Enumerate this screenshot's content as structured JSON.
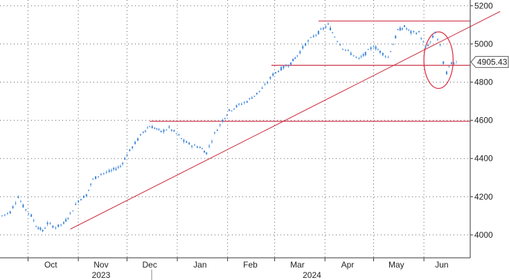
{
  "chart_data": {
    "type": "line",
    "y_axis": {
      "position": "right",
      "ylim": [
        3880,
        5230
      ],
      "ticks": [
        4000,
        4200,
        4400,
        4600,
        4800,
        5000,
        5200
      ],
      "tick_labels": [
        "4000",
        "4200",
        "4400",
        "4600",
        "4800",
        "5000",
        "5200"
      ]
    },
    "x_axis": {
      "xlim": [
        "2023-09-15",
        "2024-06-21"
      ],
      "month_ticks": [
        "2023-10-01",
        "2023-11-01",
        "2023-12-01",
        "2024-01-01",
        "2024-02-01",
        "2024-03-01",
        "2024-04-01",
        "2024-05-01",
        "2024-06-01"
      ],
      "month_labels": [
        "Oct",
        "Nov",
        "Dec",
        "Jan",
        "Feb",
        "Mar",
        "Apr",
        "May",
        "Jun"
      ],
      "month_label_dates": [
        "2023-10-15",
        "2023-11-15",
        "2023-12-15",
        "2024-01-15",
        "2024-02-15",
        "2024-03-15",
        "2024-04-15",
        "2024-05-15",
        "2024-06-12"
      ],
      "year_labels": [
        {
          "label": "2023",
          "date": "2023-11-15"
        },
        {
          "label": "2024",
          "date": "2024-03-24"
        }
      ]
    },
    "grid": true,
    "series_color": "#4a90d9",
    "series": [
      {
        "points": [
          [
            "2023-09-15",
            4100
          ],
          [
            "2023-09-20",
            4120
          ],
          [
            "2023-09-25",
            4200
          ],
          [
            "2023-09-28",
            4150
          ],
          [
            "2023-10-03",
            4100
          ],
          [
            "2023-10-06",
            4050
          ],
          [
            "2023-10-10",
            4020
          ],
          [
            "2023-10-13",
            4060
          ],
          [
            "2023-10-18",
            4040
          ],
          [
            "2023-10-23",
            4060
          ],
          [
            "2023-10-27",
            4110
          ],
          [
            "2023-11-01",
            4180
          ],
          [
            "2023-11-06",
            4210
          ],
          [
            "2023-11-10",
            4290
          ],
          [
            "2023-11-15",
            4320
          ],
          [
            "2023-11-20",
            4330
          ],
          [
            "2023-11-27",
            4360
          ],
          [
            "2023-12-01",
            4420
          ],
          [
            "2023-12-06",
            4480
          ],
          [
            "2023-12-11",
            4540
          ],
          [
            "2023-12-15",
            4570
          ],
          [
            "2023-12-18",
            4560
          ],
          [
            "2023-12-22",
            4540
          ],
          [
            "2023-12-27",
            4560
          ],
          [
            "2024-01-02",
            4520
          ],
          [
            "2024-01-05",
            4490
          ],
          [
            "2024-01-10",
            4470
          ],
          [
            "2024-01-15",
            4460
          ],
          [
            "2024-01-19",
            4430
          ],
          [
            "2024-01-24",
            4530
          ],
          [
            "2024-01-29",
            4600
          ],
          [
            "2024-02-02",
            4650
          ],
          [
            "2024-02-08",
            4680
          ],
          [
            "2024-02-13",
            4700
          ],
          [
            "2024-02-19",
            4740
          ],
          [
            "2024-02-24",
            4780
          ],
          [
            "2024-02-29",
            4840
          ],
          [
            "2024-03-05",
            4870
          ],
          [
            "2024-03-11",
            4900
          ],
          [
            "2024-03-15",
            4940
          ],
          [
            "2024-03-20",
            5000
          ],
          [
            "2024-03-25",
            5040
          ],
          [
            "2024-03-31",
            5080
          ],
          [
            "2024-04-03",
            5100
          ],
          [
            "2024-04-07",
            5040
          ],
          [
            "2024-04-12",
            4980
          ],
          [
            "2024-04-17",
            4950
          ],
          [
            "2024-04-22",
            4920
          ],
          [
            "2024-04-26",
            4950
          ],
          [
            "2024-05-01",
            4990
          ],
          [
            "2024-05-05",
            4960
          ],
          [
            "2024-05-10",
            4930
          ],
          [
            "2024-05-16",
            5070
          ],
          [
            "2024-05-20",
            5090
          ],
          [
            "2024-05-24",
            5060
          ],
          [
            "2024-05-29",
            5060
          ],
          [
            "2024-06-02",
            4980
          ],
          [
            "2024-06-05",
            5010
          ],
          [
            "2024-06-08",
            5060
          ],
          [
            "2024-06-11",
            4990
          ],
          [
            "2024-06-13",
            4900
          ],
          [
            "2024-06-15",
            4850
          ],
          [
            "2024-06-18",
            4900
          ],
          [
            "2024-06-21",
            4905.43
          ]
        ]
      }
    ],
    "last_value_label": "4905.43",
    "last_value": 4905.43,
    "annotations": {
      "trendline": {
        "from": [
          "2023-10-27",
          4030
        ],
        "to": [
          "2024-07-18",
          5170
        ],
        "color": "#cc3344"
      },
      "horizontal_lines": [
        {
          "y": 5120,
          "from": "2024-03-28",
          "color": "#cc3344"
        },
        {
          "y": 4888,
          "from": "2024-02-28",
          "color": "#cc3344"
        },
        {
          "y": 4595,
          "from": "2023-12-15",
          "color": "#cc3344"
        }
      ],
      "ellipse": {
        "center": [
          "2024-06-10",
          4915
        ],
        "radius_x_days": 9,
        "radius_y": 148,
        "color": "#d9263a"
      }
    }
  }
}
